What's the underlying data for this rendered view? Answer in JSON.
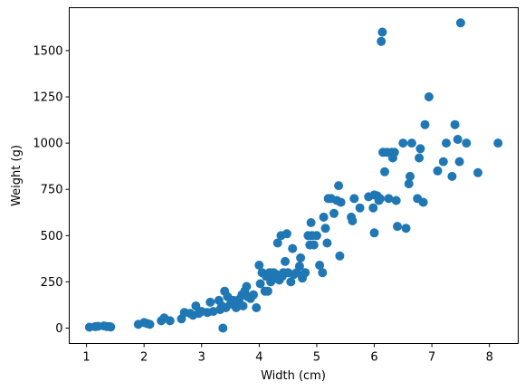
{
  "chart_data": {
    "type": "scatter",
    "xlabel": "Width (cm)",
    "ylabel": "Weight (g)",
    "xlim": [
      0.7,
      8.5
    ],
    "ylim": [
      -83,
      1732
    ],
    "xticks": [
      1,
      2,
      3,
      4,
      5,
      6,
      7,
      8
    ],
    "yticks": [
      0,
      250,
      500,
      750,
      1000,
      1250,
      1500
    ],
    "grid": false,
    "color": "#1f77b4",
    "points": [
      [
        1.05,
        5
      ],
      [
        1.15,
        8
      ],
      [
        1.2,
        10
      ],
      [
        1.3,
        12
      ],
      [
        1.35,
        9
      ],
      [
        1.4,
        8
      ],
      [
        1.42,
        6
      ],
      [
        1.9,
        20
      ],
      [
        2.0,
        30
      ],
      [
        2.05,
        25
      ],
      [
        2.1,
        20
      ],
      [
        2.3,
        40
      ],
      [
        2.35,
        55
      ],
      [
        2.45,
        40
      ],
      [
        2.65,
        50
      ],
      [
        2.7,
        85
      ],
      [
        2.8,
        80
      ],
      [
        2.85,
        70
      ],
      [
        2.9,
        120
      ],
      [
        2.95,
        80
      ],
      [
        3.0,
        90
      ],
      [
        3.1,
        85
      ],
      [
        3.15,
        140
      ],
      [
        3.2,
        90
      ],
      [
        3.3,
        150
      ],
      [
        3.32,
        100
      ],
      [
        3.35,
        120
      ],
      [
        3.37,
        0
      ],
      [
        3.4,
        200
      ],
      [
        3.42,
        110
      ],
      [
        3.45,
        170
      ],
      [
        3.5,
        130
      ],
      [
        3.55,
        150
      ],
      [
        3.6,
        110
      ],
      [
        3.62,
        140
      ],
      [
        3.65,
        155
      ],
      [
        3.7,
        180
      ],
      [
        3.72,
        120
      ],
      [
        3.75,
        200
      ],
      [
        3.78,
        225
      ],
      [
        3.8,
        170
      ],
      [
        3.85,
        160
      ],
      [
        3.9,
        180
      ],
      [
        3.95,
        110
      ],
      [
        4.0,
        340
      ],
      [
        4.02,
        240
      ],
      [
        4.05,
        300
      ],
      [
        4.1,
        200
      ],
      [
        4.12,
        280
      ],
      [
        4.15,
        200
      ],
      [
        4.18,
        300
      ],
      [
        4.2,
        250
      ],
      [
        4.22,
        260
      ],
      [
        4.25,
        300
      ],
      [
        4.28,
        270
      ],
      [
        4.3,
        290
      ],
      [
        4.32,
        460
      ],
      [
        4.35,
        260
      ],
      [
        4.38,
        500
      ],
      [
        4.4,
        280
      ],
      [
        4.42,
        300
      ],
      [
        4.45,
        360
      ],
      [
        4.48,
        510
      ],
      [
        4.5,
        300
      ],
      [
        4.55,
        250
      ],
      [
        4.58,
        430
      ],
      [
        4.6,
        290
      ],
      [
        4.65,
        300
      ],
      [
        4.7,
        335
      ],
      [
        4.72,
        380
      ],
      [
        4.75,
        270
      ],
      [
        4.8,
        300
      ],
      [
        4.85,
        500
      ],
      [
        4.88,
        450
      ],
      [
        4.9,
        570
      ],
      [
        4.92,
        500
      ],
      [
        4.95,
        450
      ],
      [
        5.0,
        500
      ],
      [
        5.05,
        340
      ],
      [
        5.1,
        300
      ],
      [
        5.12,
        600
      ],
      [
        5.15,
        540
      ],
      [
        5.18,
        460
      ],
      [
        5.2,
        700
      ],
      [
        5.25,
        700
      ],
      [
        5.3,
        620
      ],
      [
        5.35,
        690
      ],
      [
        5.38,
        770
      ],
      [
        5.4,
        390
      ],
      [
        5.42,
        680
      ],
      [
        5.6,
        600
      ],
      [
        5.62,
        580
      ],
      [
        5.65,
        700
      ],
      [
        5.75,
        650
      ],
      [
        5.9,
        710
      ],
      [
        5.98,
        650
      ],
      [
        6.0,
        720
      ],
      [
        6.05,
        715
      ],
      [
        6.08,
        690
      ],
      [
        6.1,
        700
      ],
      [
        6.12,
        1550
      ],
      [
        6.14,
        1600
      ],
      [
        6.15,
        950
      ],
      [
        6.18,
        845
      ],
      [
        6.22,
        950
      ],
      [
        6.25,
        700
      ],
      [
        6.3,
        950
      ],
      [
        6.32,
        920
      ],
      [
        6.35,
        950
      ],
      [
        6.38,
        690
      ],
      [
        6.4,
        550
      ],
      [
        6.5,
        1000
      ],
      [
        6.55,
        540
      ],
      [
        6.6,
        780
      ],
      [
        6.62,
        820
      ],
      [
        6.65,
        1000
      ],
      [
        6.75,
        700
      ],
      [
        6.78,
        920
      ],
      [
        6.8,
        970
      ],
      [
        6.85,
        680
      ],
      [
        6.88,
        1100
      ],
      [
        6.95,
        1250
      ],
      [
        7.1,
        850
      ],
      [
        7.2,
        900
      ],
      [
        7.25,
        1000
      ],
      [
        7.35,
        820
      ],
      [
        7.4,
        1100
      ],
      [
        7.45,
        1020
      ],
      [
        7.48,
        900
      ],
      [
        7.5,
        1650
      ],
      [
        7.6,
        1000
      ],
      [
        7.8,
        840
      ],
      [
        8.15,
        1000
      ],
      [
        6.0,
        515
      ]
    ]
  }
}
